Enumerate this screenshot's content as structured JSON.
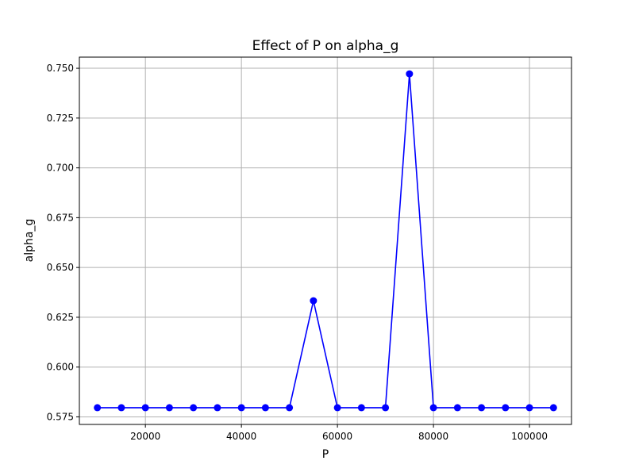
{
  "chart_data": {
    "type": "line",
    "title": "Effect of P on alpha_g",
    "xlabel": "P",
    "ylabel": "alpha_g",
    "x": [
      10000,
      15000,
      20000,
      25000,
      30000,
      35000,
      40000,
      45000,
      50000,
      55000,
      60000,
      65000,
      70000,
      75000,
      80000,
      85000,
      90000,
      95000,
      100000,
      105000
    ],
    "series": [
      {
        "values": [
          0.5796,
          0.5796,
          0.5796,
          0.5796,
          0.5796,
          0.5796,
          0.5796,
          0.5796,
          0.5796,
          0.6333,
          0.5796,
          0.5796,
          0.5796,
          0.7472,
          0.5796,
          0.5796,
          0.5796,
          0.5796,
          0.5796,
          0.5796
        ]
      }
    ],
    "xlim": [
      6250,
      108750
    ],
    "ylim": [
      0.5712,
      0.7556
    ],
    "xticks": [
      20000,
      40000,
      60000,
      80000,
      100000
    ],
    "xtick_labels": [
      "20000",
      "40000",
      "60000",
      "80000",
      "100000"
    ],
    "yticks": [
      0.575,
      0.6,
      0.625,
      0.65,
      0.675,
      0.7,
      0.725,
      0.75
    ],
    "ytick_labels": [
      "0.575",
      "0.600",
      "0.625",
      "0.650",
      "0.675",
      "0.700",
      "0.725",
      "0.750"
    ],
    "grid": true,
    "colors": {
      "line": "#0000ff",
      "grid": "#b0b0b0",
      "axes": "#000000"
    },
    "marker": "circle"
  }
}
